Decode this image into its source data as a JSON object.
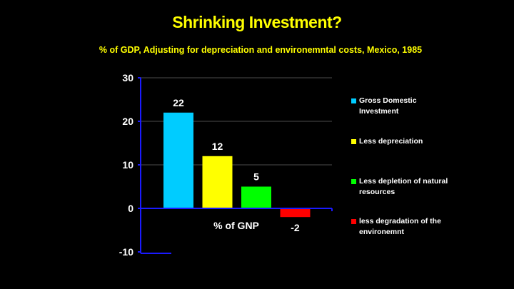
{
  "chart_data": {
    "type": "bar",
    "title": "Shrinking Investment?",
    "subtitle": "% of GDP,  Adjusting for depreciation and environemntal costs, Mexico, 1985",
    "xlabel": "% of GNP",
    "ylabel": "",
    "ylim": [
      -10,
      30
    ],
    "yticks": [
      30,
      20,
      10,
      0,
      -10
    ],
    "grid": true,
    "legend_position": "right",
    "series": [
      {
        "name": "Gross Domestic Investment",
        "value": 22,
        "label": "22",
        "color": "#00ccff"
      },
      {
        "name": "Less depreciation",
        "value": 12,
        "label": "12",
        "color": "#ffff00"
      },
      {
        "name": "Less depletion of natural resources",
        "value": 5,
        "label": "5",
        "color": "#00ff00"
      },
      {
        "name": "less degradation of the environemnt",
        "value": -2,
        "label": "-2",
        "color": "#ff0000"
      }
    ]
  }
}
